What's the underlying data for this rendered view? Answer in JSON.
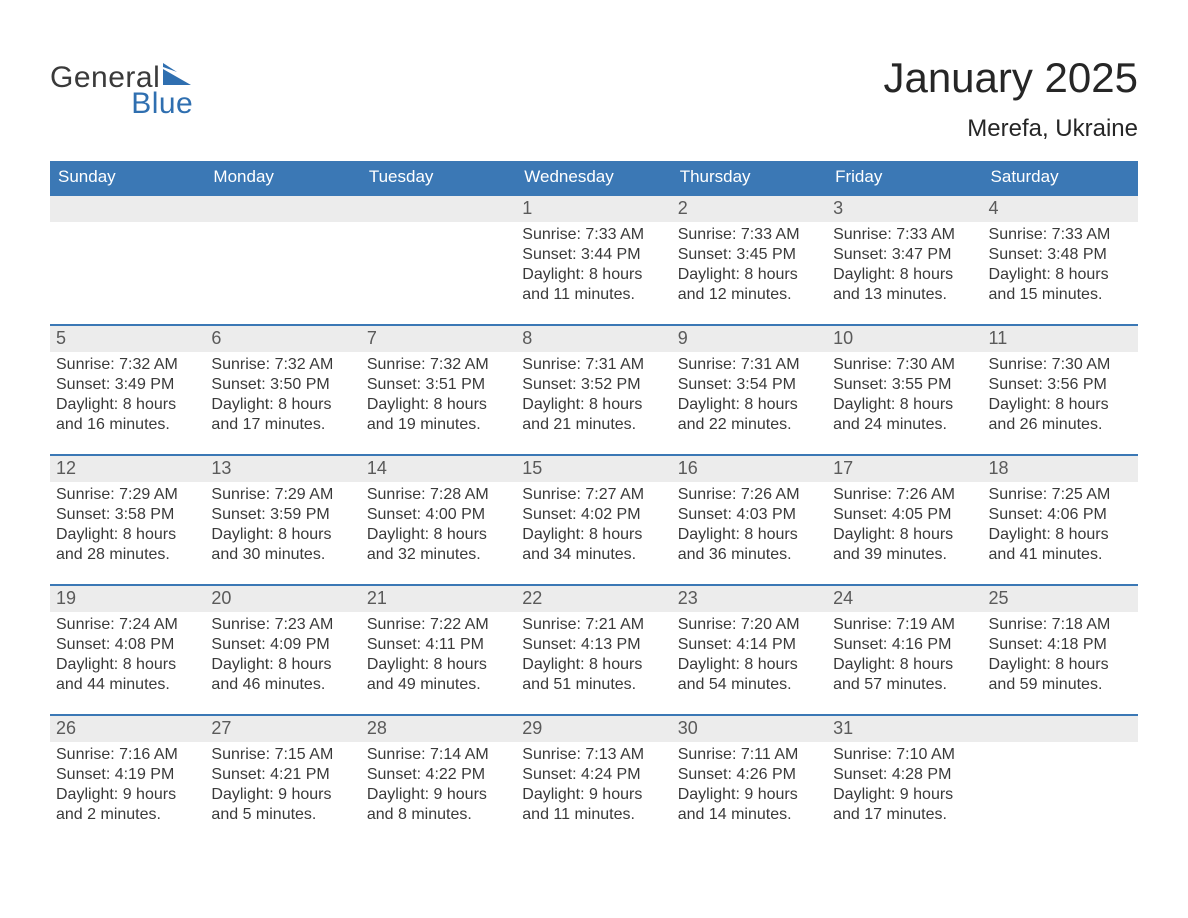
{
  "logo": {
    "word1": "General",
    "word2": "Blue"
  },
  "title": "January 2025",
  "location": "Merefa, Ukraine",
  "colors": {
    "header_bg": "#3b78b5",
    "header_text": "#ffffff",
    "daynum_bg": "#ececec",
    "text": "#3a3a3a",
    "logo_gray": "#3a3a3a",
    "logo_blue": "#2f6fb0"
  },
  "day_names": [
    "Sunday",
    "Monday",
    "Tuesday",
    "Wednesday",
    "Thursday",
    "Friday",
    "Saturday"
  ],
  "weeks": [
    [
      {
        "n": "",
        "lines": [
          "",
          "",
          "",
          ""
        ]
      },
      {
        "n": "",
        "lines": [
          "",
          "",
          "",
          ""
        ]
      },
      {
        "n": "",
        "lines": [
          "",
          "",
          "",
          ""
        ]
      },
      {
        "n": "1",
        "lines": [
          "Sunrise: 7:33 AM",
          "Sunset: 3:44 PM",
          "Daylight: 8 hours",
          "and 11 minutes."
        ]
      },
      {
        "n": "2",
        "lines": [
          "Sunrise: 7:33 AM",
          "Sunset: 3:45 PM",
          "Daylight: 8 hours",
          "and 12 minutes."
        ]
      },
      {
        "n": "3",
        "lines": [
          "Sunrise: 7:33 AM",
          "Sunset: 3:47 PM",
          "Daylight: 8 hours",
          "and 13 minutes."
        ]
      },
      {
        "n": "4",
        "lines": [
          "Sunrise: 7:33 AM",
          "Sunset: 3:48 PM",
          "Daylight: 8 hours",
          "and 15 minutes."
        ]
      }
    ],
    [
      {
        "n": "5",
        "lines": [
          "Sunrise: 7:32 AM",
          "Sunset: 3:49 PM",
          "Daylight: 8 hours",
          "and 16 minutes."
        ]
      },
      {
        "n": "6",
        "lines": [
          "Sunrise: 7:32 AM",
          "Sunset: 3:50 PM",
          "Daylight: 8 hours",
          "and 17 minutes."
        ]
      },
      {
        "n": "7",
        "lines": [
          "Sunrise: 7:32 AM",
          "Sunset: 3:51 PM",
          "Daylight: 8 hours",
          "and 19 minutes."
        ]
      },
      {
        "n": "8",
        "lines": [
          "Sunrise: 7:31 AM",
          "Sunset: 3:52 PM",
          "Daylight: 8 hours",
          "and 21 minutes."
        ]
      },
      {
        "n": "9",
        "lines": [
          "Sunrise: 7:31 AM",
          "Sunset: 3:54 PM",
          "Daylight: 8 hours",
          "and 22 minutes."
        ]
      },
      {
        "n": "10",
        "lines": [
          "Sunrise: 7:30 AM",
          "Sunset: 3:55 PM",
          "Daylight: 8 hours",
          "and 24 minutes."
        ]
      },
      {
        "n": "11",
        "lines": [
          "Sunrise: 7:30 AM",
          "Sunset: 3:56 PM",
          "Daylight: 8 hours",
          "and 26 minutes."
        ]
      }
    ],
    [
      {
        "n": "12",
        "lines": [
          "Sunrise: 7:29 AM",
          "Sunset: 3:58 PM",
          "Daylight: 8 hours",
          "and 28 minutes."
        ]
      },
      {
        "n": "13",
        "lines": [
          "Sunrise: 7:29 AM",
          "Sunset: 3:59 PM",
          "Daylight: 8 hours",
          "and 30 minutes."
        ]
      },
      {
        "n": "14",
        "lines": [
          "Sunrise: 7:28 AM",
          "Sunset: 4:00 PM",
          "Daylight: 8 hours",
          "and 32 minutes."
        ]
      },
      {
        "n": "15",
        "lines": [
          "Sunrise: 7:27 AM",
          "Sunset: 4:02 PM",
          "Daylight: 8 hours",
          "and 34 minutes."
        ]
      },
      {
        "n": "16",
        "lines": [
          "Sunrise: 7:26 AM",
          "Sunset: 4:03 PM",
          "Daylight: 8 hours",
          "and 36 minutes."
        ]
      },
      {
        "n": "17",
        "lines": [
          "Sunrise: 7:26 AM",
          "Sunset: 4:05 PM",
          "Daylight: 8 hours",
          "and 39 minutes."
        ]
      },
      {
        "n": "18",
        "lines": [
          "Sunrise: 7:25 AM",
          "Sunset: 4:06 PM",
          "Daylight: 8 hours",
          "and 41 minutes."
        ]
      }
    ],
    [
      {
        "n": "19",
        "lines": [
          "Sunrise: 7:24 AM",
          "Sunset: 4:08 PM",
          "Daylight: 8 hours",
          "and 44 minutes."
        ]
      },
      {
        "n": "20",
        "lines": [
          "Sunrise: 7:23 AM",
          "Sunset: 4:09 PM",
          "Daylight: 8 hours",
          "and 46 minutes."
        ]
      },
      {
        "n": "21",
        "lines": [
          "Sunrise: 7:22 AM",
          "Sunset: 4:11 PM",
          "Daylight: 8 hours",
          "and 49 minutes."
        ]
      },
      {
        "n": "22",
        "lines": [
          "Sunrise: 7:21 AM",
          "Sunset: 4:13 PM",
          "Daylight: 8 hours",
          "and 51 minutes."
        ]
      },
      {
        "n": "23",
        "lines": [
          "Sunrise: 7:20 AM",
          "Sunset: 4:14 PM",
          "Daylight: 8 hours",
          "and 54 minutes."
        ]
      },
      {
        "n": "24",
        "lines": [
          "Sunrise: 7:19 AM",
          "Sunset: 4:16 PM",
          "Daylight: 8 hours",
          "and 57 minutes."
        ]
      },
      {
        "n": "25",
        "lines": [
          "Sunrise: 7:18 AM",
          "Sunset: 4:18 PM",
          "Daylight: 8 hours",
          "and 59 minutes."
        ]
      }
    ],
    [
      {
        "n": "26",
        "lines": [
          "Sunrise: 7:16 AM",
          "Sunset: 4:19 PM",
          "Daylight: 9 hours",
          "and 2 minutes."
        ]
      },
      {
        "n": "27",
        "lines": [
          "Sunrise: 7:15 AM",
          "Sunset: 4:21 PM",
          "Daylight: 9 hours",
          "and 5 minutes."
        ]
      },
      {
        "n": "28",
        "lines": [
          "Sunrise: 7:14 AM",
          "Sunset: 4:22 PM",
          "Daylight: 9 hours",
          "and 8 minutes."
        ]
      },
      {
        "n": "29",
        "lines": [
          "Sunrise: 7:13 AM",
          "Sunset: 4:24 PM",
          "Daylight: 9 hours",
          "and 11 minutes."
        ]
      },
      {
        "n": "30",
        "lines": [
          "Sunrise: 7:11 AM",
          "Sunset: 4:26 PM",
          "Daylight: 9 hours",
          "and 14 minutes."
        ]
      },
      {
        "n": "31",
        "lines": [
          "Sunrise: 7:10 AM",
          "Sunset: 4:28 PM",
          "Daylight: 9 hours",
          "and 17 minutes."
        ]
      },
      {
        "n": "",
        "lines": [
          "",
          "",
          "",
          ""
        ]
      }
    ]
  ]
}
